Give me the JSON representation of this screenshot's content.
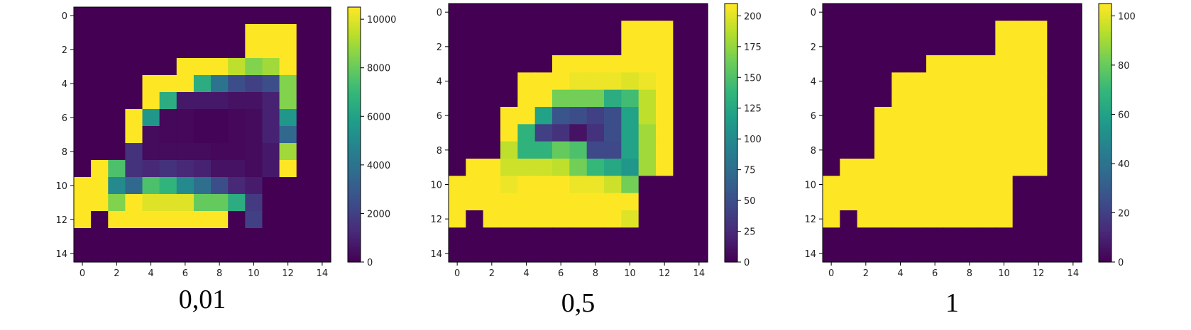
{
  "chart_data": [
    {
      "type": "heatmap",
      "caption": "0,01",
      "colormap": "viridis",
      "x_ticks": [
        0,
        2,
        4,
        6,
        8,
        10,
        12,
        14
      ],
      "y_ticks": [
        0,
        2,
        4,
        6,
        8,
        10,
        12,
        14
      ],
      "colorbar_range": [
        0,
        10500
      ],
      "colorbar_ticks": [
        0,
        2000,
        4000,
        6000,
        8000,
        10000
      ],
      "colorbar_labels": [
        "0",
        "2000",
        "4000",
        "6000",
        "8000",
        "10000"
      ],
      "grid": false,
      "values": [
        [
          0,
          0,
          0,
          0,
          0,
          0,
          0,
          0,
          0,
          0,
          0,
          0,
          0,
          0,
          0
        ],
        [
          0,
          0,
          0,
          0,
          0,
          0,
          0,
          0,
          0,
          0,
          10500,
          10500,
          10500,
          0,
          0
        ],
        [
          0,
          0,
          0,
          0,
          0,
          0,
          0,
          0,
          0,
          0,
          10500,
          10500,
          10500,
          0,
          0
        ],
        [
          0,
          0,
          0,
          0,
          0,
          0,
          10500,
          10500,
          10500,
          9500,
          8500,
          9000,
          10500,
          0,
          0
        ],
        [
          0,
          0,
          0,
          0,
          10500,
          10500,
          10500,
          6500,
          4000,
          2500,
          2000,
          2500,
          8500,
          0,
          0
        ],
        [
          0,
          0,
          0,
          0,
          10500,
          6500,
          700,
          700,
          700,
          500,
          500,
          1000,
          8500,
          0,
          0
        ],
        [
          0,
          0,
          0,
          10500,
          5500,
          200,
          200,
          100,
          100,
          200,
          300,
          1000,
          5500,
          0,
          0
        ],
        [
          0,
          0,
          0,
          10500,
          300,
          200,
          200,
          100,
          100,
          200,
          300,
          1000,
          3500,
          0,
          0
        ],
        [
          0,
          0,
          0,
          1500,
          300,
          300,
          300,
          300,
          200,
          200,
          300,
          700,
          9000,
          0,
          0
        ],
        [
          0,
          10500,
          7500,
          1500,
          1200,
          1500,
          1200,
          1000,
          500,
          500,
          300,
          700,
          10500,
          0,
          0
        ],
        [
          10500,
          10500,
          5000,
          3500,
          7500,
          6800,
          5000,
          3800,
          2500,
          1200,
          800,
          0,
          0,
          0,
          0
        ],
        [
          10500,
          10500,
          8500,
          10500,
          10000,
          10000,
          10000,
          8000,
          8000,
          6500,
          1800,
          0,
          0,
          0,
          0
        ],
        [
          10500,
          0,
          10500,
          10500,
          10500,
          10500,
          10500,
          10500,
          10500,
          0,
          2000,
          0,
          0,
          0,
          0
        ],
        [
          0,
          0,
          0,
          0,
          0,
          0,
          0,
          0,
          0,
          0,
          0,
          0,
          0,
          0,
          0
        ],
        [
          0,
          0,
          0,
          0,
          0,
          0,
          0,
          0,
          0,
          0,
          0,
          0,
          0,
          0,
          0
        ]
      ]
    },
    {
      "type": "heatmap",
      "caption": "0,5",
      "colormap": "viridis",
      "x_ticks": [
        0,
        2,
        4,
        6,
        8,
        10,
        12,
        14
      ],
      "y_ticks": [
        0,
        2,
        4,
        6,
        8,
        10,
        12,
        14
      ],
      "colorbar_range": [
        0,
        210
      ],
      "colorbar_ticks": [
        0,
        25,
        50,
        75,
        100,
        125,
        150,
        175,
        200
      ],
      "colorbar_labels": [
        "0",
        "25",
        "50",
        "75",
        "100",
        "125",
        "150",
        "175",
        "200"
      ],
      "grid": false,
      "values": [
        [
          0,
          0,
          0,
          0,
          0,
          0,
          0,
          0,
          0,
          0,
          0,
          0,
          0,
          0,
          0
        ],
        [
          0,
          0,
          0,
          0,
          0,
          0,
          0,
          0,
          0,
          0,
          210,
          210,
          210,
          0,
          0
        ],
        [
          0,
          0,
          0,
          0,
          0,
          0,
          0,
          0,
          0,
          0,
          210,
          210,
          210,
          0,
          0
        ],
        [
          0,
          0,
          0,
          0,
          0,
          0,
          210,
          210,
          210,
          210,
          210,
          210,
          210,
          0,
          0
        ],
        [
          0,
          0,
          0,
          0,
          210,
          210,
          210,
          205,
          205,
          205,
          200,
          205,
          210,
          0,
          0
        ],
        [
          0,
          0,
          0,
          0,
          210,
          210,
          165,
          165,
          165,
          130,
          145,
          190,
          210,
          0,
          0
        ],
        [
          0,
          0,
          0,
          210,
          210,
          120,
          55,
          50,
          40,
          50,
          120,
          190,
          210,
          0,
          0
        ],
        [
          0,
          0,
          0,
          210,
          135,
          40,
          30,
          10,
          30,
          50,
          120,
          180,
          210,
          0,
          0
        ],
        [
          0,
          0,
          0,
          190,
          135,
          135,
          160,
          150,
          45,
          45,
          120,
          180,
          210,
          0,
          0
        ],
        [
          0,
          210,
          210,
          195,
          195,
          195,
          190,
          165,
          140,
          125,
          110,
          180,
          210,
          0,
          0
        ],
        [
          210,
          210,
          210,
          205,
          210,
          210,
          210,
          205,
          205,
          195,
          165,
          0,
          0,
          0,
          0
        ],
        [
          210,
          210,
          210,
          210,
          210,
          210,
          210,
          210,
          210,
          210,
          210,
          0,
          0,
          0,
          0
        ],
        [
          210,
          0,
          210,
          210,
          210,
          210,
          210,
          210,
          210,
          210,
          200,
          0,
          0,
          0,
          0
        ],
        [
          0,
          0,
          0,
          0,
          0,
          0,
          0,
          0,
          0,
          0,
          0,
          0,
          0,
          0,
          0
        ],
        [
          0,
          0,
          0,
          0,
          0,
          0,
          0,
          0,
          0,
          0,
          0,
          0,
          0,
          0,
          0
        ]
      ]
    },
    {
      "type": "heatmap",
      "caption": "1",
      "colormap": "viridis",
      "x_ticks": [
        0,
        2,
        4,
        6,
        8,
        10,
        12,
        14
      ],
      "y_ticks": [
        0,
        2,
        4,
        6,
        8,
        10,
        12,
        14
      ],
      "colorbar_range": [
        0,
        105
      ],
      "colorbar_ticks": [
        0,
        20,
        40,
        60,
        80,
        100
      ],
      "colorbar_labels": [
        "0",
        "20",
        "40",
        "60",
        "80",
        "100"
      ],
      "grid": false,
      "values": [
        [
          0,
          0,
          0,
          0,
          0,
          0,
          0,
          0,
          0,
          0,
          0,
          0,
          0,
          0,
          0
        ],
        [
          0,
          0,
          0,
          0,
          0,
          0,
          0,
          0,
          0,
          0,
          105,
          105,
          105,
          0,
          0
        ],
        [
          0,
          0,
          0,
          0,
          0,
          0,
          0,
          0,
          0,
          0,
          105,
          105,
          105,
          0,
          0
        ],
        [
          0,
          0,
          0,
          0,
          0,
          0,
          105,
          105,
          105,
          105,
          105,
          105,
          105,
          0,
          0
        ],
        [
          0,
          0,
          0,
          0,
          105,
          105,
          105,
          105,
          105,
          105,
          105,
          105,
          105,
          0,
          0
        ],
        [
          0,
          0,
          0,
          0,
          105,
          105,
          105,
          105,
          105,
          105,
          105,
          105,
          105,
          0,
          0
        ],
        [
          0,
          0,
          0,
          105,
          105,
          105,
          105,
          105,
          105,
          105,
          105,
          105,
          105,
          0,
          0
        ],
        [
          0,
          0,
          0,
          105,
          105,
          105,
          105,
          105,
          105,
          105,
          105,
          105,
          105,
          0,
          0
        ],
        [
          0,
          0,
          0,
          105,
          105,
          105,
          105,
          105,
          105,
          105,
          105,
          105,
          105,
          0,
          0
        ],
        [
          0,
          105,
          105,
          105,
          105,
          105,
          105,
          105,
          105,
          105,
          105,
          105,
          105,
          0,
          0
        ],
        [
          105,
          105,
          105,
          105,
          105,
          105,
          105,
          105,
          105,
          105,
          105,
          0,
          0,
          0,
          0
        ],
        [
          105,
          105,
          105,
          105,
          105,
          105,
          105,
          105,
          105,
          105,
          105,
          0,
          0,
          0,
          0
        ],
        [
          105,
          0,
          105,
          105,
          105,
          105,
          105,
          105,
          105,
          105,
          105,
          0,
          0,
          0,
          0
        ],
        [
          0,
          0,
          0,
          0,
          0,
          0,
          0,
          0,
          0,
          0,
          0,
          0,
          0,
          0,
          0
        ],
        [
          0,
          0,
          0,
          0,
          0,
          0,
          0,
          0,
          0,
          0,
          0,
          0,
          0,
          0,
          0
        ]
      ]
    }
  ]
}
